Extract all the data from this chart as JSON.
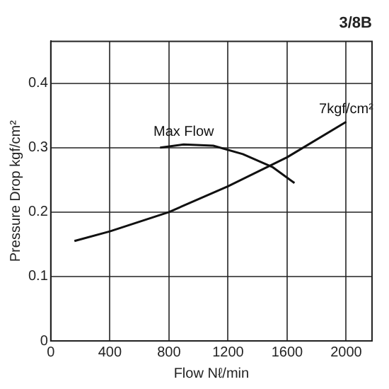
{
  "chart_data": {
    "type": "line",
    "subtitle": "3/8B",
    "xlabel": "Flow Nℓ/min",
    "ylabel": "Pressure Drop kgf/cm²",
    "xlim": [
      0,
      2175
    ],
    "xticks": [
      0,
      400,
      800,
      1200,
      1600,
      2000
    ],
    "ylim": [
      0,
      0.465
    ],
    "yticks": [
      0,
      0.1,
      0.2,
      0.3,
      0.4
    ],
    "grid": true,
    "legend": false,
    "marker": "none",
    "line_style": "solid",
    "series": [
      {
        "name": "7kgf/cm²",
        "color": "#111111",
        "x": [
          160,
          400,
          800,
          1200,
          1600,
          2000
        ],
        "values": [
          0.155,
          0.17,
          0.2,
          0.24,
          0.285,
          0.34
        ]
      },
      {
        "name": "Max Flow",
        "color": "#111111",
        "x": [
          740,
          900,
          1100,
          1300,
          1500,
          1650
        ],
        "values": [
          0.3,
          0.305,
          0.303,
          0.29,
          0.27,
          0.245
        ]
      }
    ]
  }
}
